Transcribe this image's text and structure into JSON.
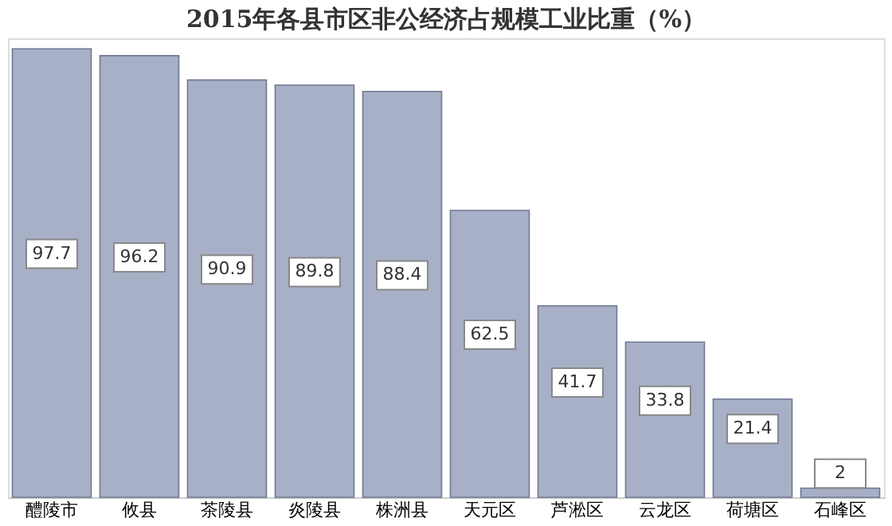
{
  "chart_data": {
    "type": "bar",
    "title": "2015年各县市区非公经济占规模工业比重（%）",
    "categories": [
      "醴陵市",
      "攸县",
      "茶陵县",
      "炎陵县",
      "株洲县",
      "天元区",
      "芦淞区",
      "云龙区",
      "荷塘区",
      "石峰区"
    ],
    "values": [
      97.7,
      96.2,
      90.9,
      89.8,
      88.4,
      62.5,
      41.7,
      33.8,
      21.4,
      2
    ],
    "color": "#a7b0c6",
    "data_labels": true
  }
}
